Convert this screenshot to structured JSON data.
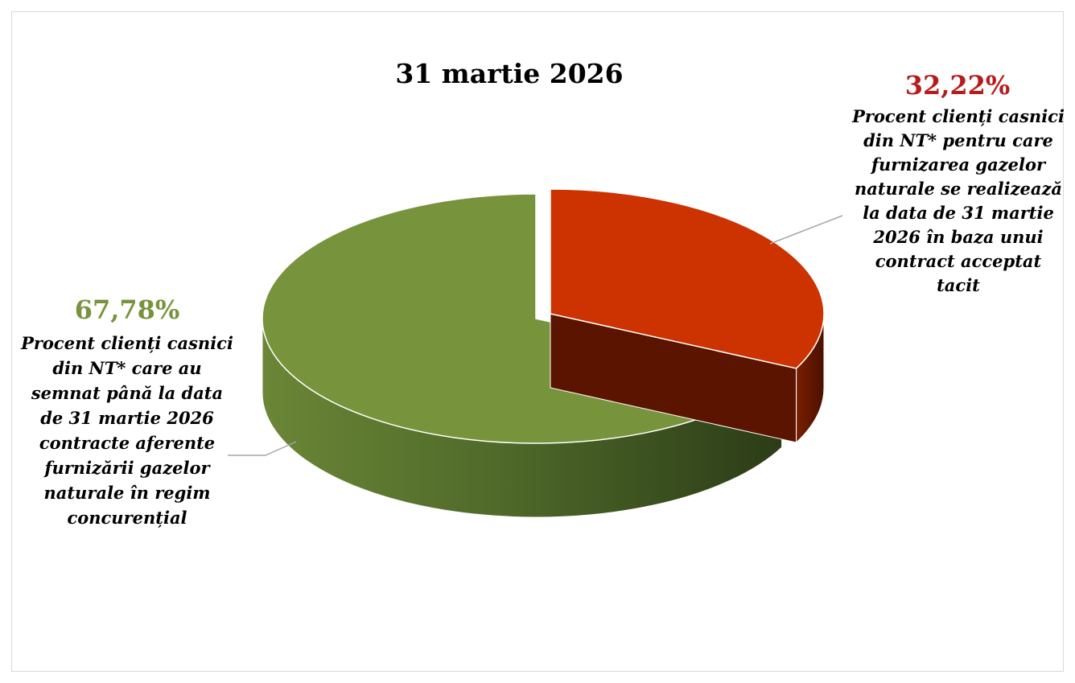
{
  "chart_data": {
    "type": "pie",
    "style": "3d-exploded",
    "title": "31 martie 2026",
    "slices": [
      {
        "value_label": "32,22%",
        "value": 32.22,
        "color": "#cc3300",
        "label_color": "#b71c1c",
        "label_lines": [
          "Procent clienți casnici",
          "din NT* pentru care",
          "furnizarea gazelor",
          "naturale se realizează",
          "la data de 31 martie",
          "2026 în baza unui",
          "contract acceptat",
          "tacit"
        ]
      },
      {
        "value_label": "67,78%",
        "value": 67.78,
        "color": "#77933c",
        "label_color": "#77933c",
        "label_lines": [
          "Procent clienți casnici",
          "din NT* care au",
          "semnat până la data",
          "de 31 martie 2026",
          "contracte aferente",
          "furnizării gazelor",
          "naturale în regim",
          "concurențial"
        ]
      }
    ]
  }
}
